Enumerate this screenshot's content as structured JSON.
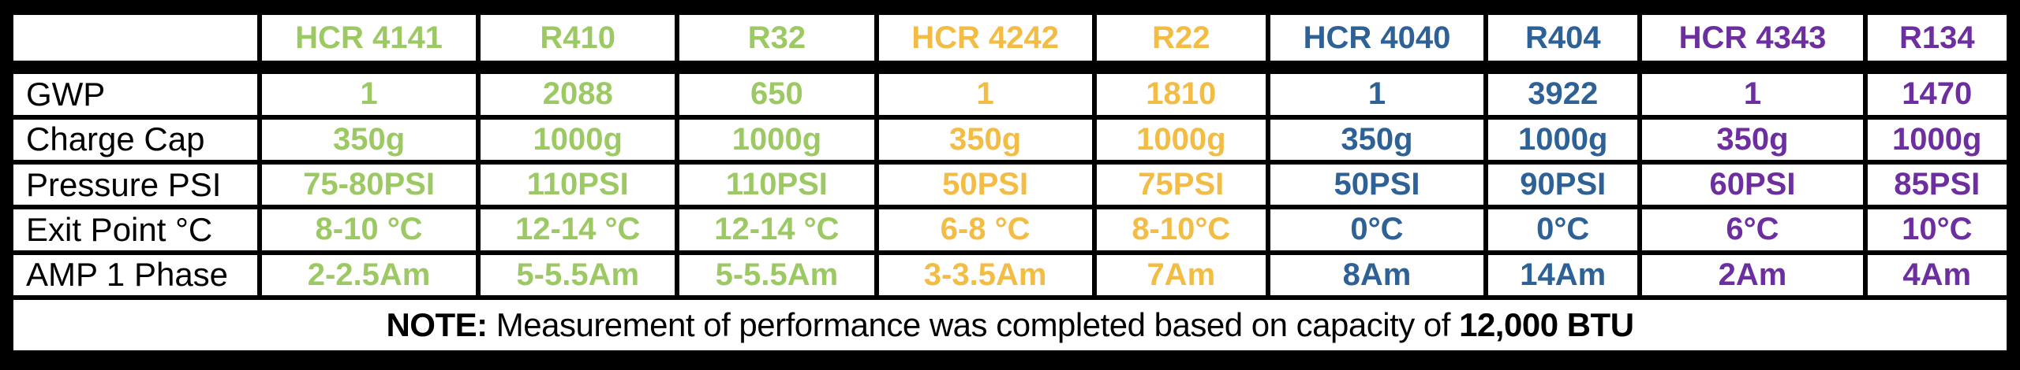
{
  "palette": {
    "green": "#9CC964",
    "gold": "#F2BC45",
    "blue": "#2E6196",
    "purple": "#6D2FA0",
    "label_text": "#000000",
    "grid": "#000000",
    "cell_bg": "#FFFFFF"
  },
  "table": {
    "corner_label": "",
    "row_headers": [
      "GWP",
      "Charge Cap",
      "Pressure PSI",
      "Exit Point °C",
      "AMP 1 Phase"
    ],
    "columns": [
      {
        "label": "HCR 4141",
        "color_key": "green",
        "values": [
          "1",
          "350g",
          "75-80PSI",
          "8-10 °C",
          "2-2.5Am"
        ]
      },
      {
        "label": "R410",
        "color_key": "green",
        "values": [
          "2088",
          "1000g",
          "110PSI",
          "12-14 °C",
          "5-5.5Am"
        ]
      },
      {
        "label": "R32",
        "color_key": "green",
        "values": [
          "650",
          "1000g",
          "110PSI",
          "12-14 °C",
          "5-5.5Am"
        ]
      },
      {
        "label": "HCR 4242",
        "color_key": "gold",
        "values": [
          "1",
          "350g",
          "50PSI",
          "6-8 °C",
          "3-3.5Am"
        ]
      },
      {
        "label": "R22",
        "color_key": "gold",
        "values": [
          "1810",
          "1000g",
          "75PSI",
          "8-10°C",
          "7Am"
        ]
      },
      {
        "label": "HCR 4040",
        "color_key": "blue",
        "values": [
          "1",
          "350g",
          "50PSI",
          "0°C",
          "8Am"
        ]
      },
      {
        "label": "R404",
        "color_key": "blue",
        "values": [
          "3922",
          "1000g",
          "90PSI",
          "0°C",
          "14Am"
        ]
      },
      {
        "label": "HCR 4343",
        "color_key": "purple",
        "values": [
          "1",
          "350g",
          "60PSI",
          "6°C",
          "2Am"
        ]
      },
      {
        "label": "R134",
        "color_key": "purple",
        "values": [
          "1470",
          "1000g",
          "85PSI",
          "10°C",
          "4Am"
        ]
      }
    ],
    "note": {
      "label_bold": "NOTE:",
      "text": " Measurement of performance was completed based on capacity of ",
      "value_bold": "12,000 BTU"
    }
  },
  "chart_data": {
    "type": "table",
    "column_headers": [
      "",
      "HCR 4141",
      "R410",
      "R32",
      "HCR 4242",
      "R22",
      "HCR 4040",
      "R404",
      "HCR 4343",
      "R134"
    ],
    "rows": [
      [
        "GWP",
        "1",
        "2088",
        "650",
        "1",
        "1810",
        "1",
        "3922",
        "1",
        "1470"
      ],
      [
        "Charge Cap",
        "350g",
        "1000g",
        "1000g",
        "350g",
        "1000g",
        "350g",
        "1000g",
        "350g",
        "1000g"
      ],
      [
        "Pressure PSI",
        "75-80PSI",
        "110PSI",
        "110PSI",
        "50PSI",
        "75PSI",
        "50PSI",
        "90PSI",
        "60PSI",
        "85PSI"
      ],
      [
        "Exit Point °C",
        "8-10 °C",
        "12-14 °C",
        "12-14 °C",
        "6-8 °C",
        "8-10°C",
        "0°C",
        "0°C",
        "6°C",
        "10°C"
      ],
      [
        "AMP 1 Phase",
        "2-2.5Am",
        "5-5.5Am",
        "5-5.5Am",
        "3-3.5Am",
        "7Am",
        "8Am",
        "14Am",
        "2Am",
        "4Am"
      ]
    ],
    "note": "NOTE: Measurement of performance was completed based on capacity of 12,000 BTU",
    "column_color_groups": {
      "green": [
        "HCR 4141",
        "R410",
        "R32"
      ],
      "gold": [
        "HCR 4242",
        "R22"
      ],
      "blue": [
        "HCR 4040",
        "R404"
      ],
      "purple": [
        "HCR 4343",
        "R134"
      ]
    },
    "legend_position": "none",
    "grid": true
  }
}
